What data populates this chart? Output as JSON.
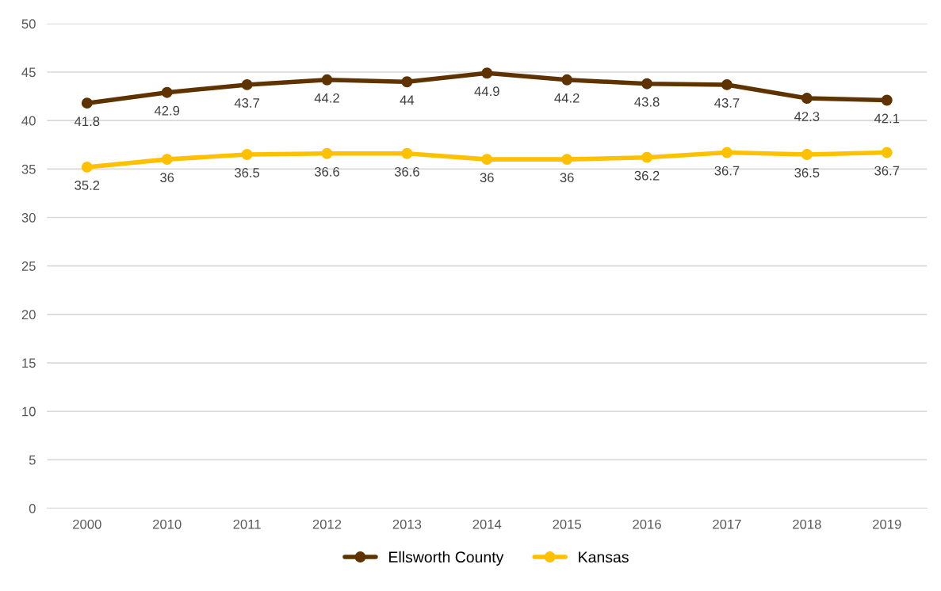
{
  "chart_data": {
    "type": "line",
    "categories": [
      "2000",
      "2010",
      "2011",
      "2012",
      "2013",
      "2014",
      "2015",
      "2016",
      "2017",
      "2018",
      "2019"
    ],
    "series": [
      {
        "name": "Ellsworth County",
        "color": "#5e3300",
        "values": [
          41.8,
          42.9,
          43.7,
          44.2,
          44,
          44.9,
          44.2,
          43.8,
          43.7,
          42.3,
          42.1
        ]
      },
      {
        "name": "Kansas",
        "color": "#ffc000",
        "values": [
          35.2,
          36,
          36.5,
          36.6,
          36.6,
          36,
          36,
          36.2,
          36.7,
          36.5,
          36.7
        ]
      }
    ],
    "ylim": [
      0,
      50
    ],
    "yticks": [
      0,
      5,
      10,
      15,
      20,
      25,
      30,
      35,
      40,
      45,
      50
    ],
    "grid": "y",
    "legend": "bottom",
    "marker": "circle",
    "line_style": "solid",
    "data_labels": true
  }
}
